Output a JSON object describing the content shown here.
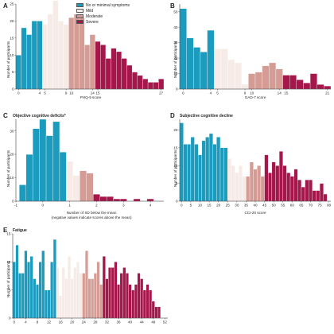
{
  "colors": {
    "none": "#1b9bbd",
    "mild": "#f6ebe6",
    "moderate": "#d59c96",
    "severe": "#a5164a"
  },
  "legend": {
    "items": [
      {
        "key": "none",
        "label": "No or minimal symptoms"
      },
      {
        "key": "mild",
        "label": "Mild"
      },
      {
        "key": "moderate",
        "label": "Moderate"
      },
      {
        "key": "severe",
        "label": "Severe"
      }
    ]
  },
  "chart_data": [
    {
      "panel": "A",
      "title": "",
      "type": "bar",
      "xlabel": "PHQ-9 score",
      "ylabel": "Number of participants",
      "xlim": [
        -0.5,
        27.5
      ],
      "ylim": [
        0,
        25
      ],
      "yticks": [
        0,
        5,
        10,
        15,
        20,
        25
      ],
      "xticks": [
        0,
        4,
        5,
        9,
        10,
        14,
        15,
        27
      ],
      "x": [
        0,
        1,
        2,
        3,
        4,
        5,
        6,
        7,
        8,
        9,
        10,
        11,
        12,
        13,
        14,
        15,
        16,
        17,
        18,
        19,
        20,
        21,
        22,
        23,
        24,
        25,
        26,
        27
      ],
      "values": [
        10,
        18,
        16,
        20,
        20,
        19,
        22,
        26,
        20,
        19,
        21,
        22,
        21,
        13,
        16,
        14,
        13,
        9,
        12,
        11,
        9,
        7,
        5,
        4,
        3,
        2,
        2,
        3
      ],
      "categories_bins": [
        "none",
        "none",
        "none",
        "none",
        "none",
        "mild",
        "mild",
        "mild",
        "mild",
        "mild",
        "moderate",
        "moderate",
        "moderate",
        "moderate",
        "moderate",
        "severe",
        "severe",
        "severe",
        "severe",
        "severe",
        "severe",
        "severe",
        "severe",
        "severe",
        "severe",
        "severe",
        "severe",
        "severe"
      ]
    },
    {
      "panel": "B",
      "title": "",
      "type": "bar",
      "xlabel": "GAD-7 score",
      "ylabel": "Number of participants",
      "xlim": [
        -0.5,
        21.5
      ],
      "ylim": [
        0,
        55
      ],
      "yticks": [
        0,
        10,
        20,
        30,
        40,
        50
      ],
      "xticks": [
        0,
        4,
        5,
        9,
        10,
        14,
        15,
        21
      ],
      "x": [
        0,
        1,
        2,
        3,
        4,
        5,
        6,
        7,
        8,
        9,
        10,
        11,
        12,
        13,
        14,
        15,
        16,
        17,
        18,
        19,
        20,
        21
      ],
      "values": [
        52,
        33,
        27,
        24,
        38,
        26,
        26,
        19,
        17,
        3,
        10,
        11,
        15,
        17,
        13,
        9,
        9,
        6,
        4,
        10,
        3,
        2
      ],
      "categories_bins": [
        "none",
        "none",
        "none",
        "none",
        "none",
        "mild",
        "mild",
        "mild",
        "mild",
        "mild",
        "moderate",
        "moderate",
        "moderate",
        "moderate",
        "moderate",
        "severe",
        "severe",
        "severe",
        "severe",
        "severe",
        "severe",
        "severe"
      ]
    },
    {
      "panel": "C",
      "title": "Objective cognitive deficits*",
      "type": "bar",
      "xlabel": "Number of SD below the mean",
      "xlabel2": "(negative values indicate scores above the mean)",
      "ylabel": "Number of participants",
      "xlim": [
        -1,
        4.5
      ],
      "ylim": [
        0,
        35
      ],
      "yticks": [
        0,
        10,
        20,
        30
      ],
      "xticks": [
        -1,
        0,
        1,
        2,
        3,
        4
      ],
      "x": [
        -0.75,
        -0.5,
        -0.25,
        0,
        0.25,
        0.5,
        0.75,
        1,
        1.25,
        1.5,
        1.75,
        2,
        2.25,
        2.5,
        2.75,
        3,
        3.25,
        3.5,
        3.75,
        4,
        4.25
      ],
      "values": [
        7,
        20,
        31,
        35,
        28,
        34,
        21,
        17,
        11,
        13,
        12,
        3,
        2,
        2,
        1,
        1,
        0,
        1,
        0,
        1,
        0
      ],
      "categories_bins": [
        "none",
        "none",
        "none",
        "none",
        "none",
        "none",
        "none",
        "mild",
        "mild",
        "moderate",
        "moderate",
        "severe",
        "severe",
        "severe",
        "severe",
        "severe",
        "severe",
        "severe",
        "severe",
        "severe",
        "severe"
      ]
    },
    {
      "panel": "D",
      "title": "Subjective cognitive decline",
      "type": "bar",
      "xlabel": "CCI-20 score",
      "ylabel": "Number of participants",
      "xlim": [
        -1,
        81
      ],
      "ylim": [
        0,
        23
      ],
      "yticks": [
        0,
        5,
        10,
        15,
        20
      ],
      "xticks": [
        0,
        5,
        10,
        15,
        20,
        25,
        30,
        35,
        40,
        45,
        50,
        55,
        60,
        65,
        70,
        75,
        80
      ],
      "x": [
        0,
        2,
        4,
        6,
        8,
        10,
        12,
        14,
        16,
        18,
        20,
        22,
        24,
        26,
        28,
        30,
        32,
        34,
        36,
        38,
        40,
        42,
        44,
        46,
        48,
        50,
        52,
        54,
        56,
        58,
        60,
        62,
        64,
        66,
        68,
        70,
        72,
        74,
        76,
        78
      ],
      "values": [
        22,
        16,
        16,
        18,
        16,
        13,
        17,
        18,
        19,
        16,
        18,
        15,
        15,
        12,
        10,
        8,
        10,
        7,
        7,
        11,
        9,
        10,
        7,
        13,
        8,
        11,
        10,
        14,
        10,
        8,
        7,
        9,
        6,
        4,
        6,
        6,
        3,
        3,
        5,
        2
      ],
      "categories_bins": [
        "none",
        "none",
        "none",
        "none",
        "none",
        "none",
        "none",
        "none",
        "none",
        "none",
        "none",
        "none",
        "none",
        "mild",
        "mild",
        "mild",
        "mild",
        "mild",
        "moderate",
        "moderate",
        "moderate",
        "moderate",
        "moderate",
        "severe",
        "severe",
        "severe",
        "severe",
        "severe",
        "severe",
        "severe",
        "severe",
        "severe",
        "severe",
        "severe",
        "severe",
        "severe",
        "severe",
        "severe",
        "severe",
        "severe"
      ]
    },
    {
      "panel": "E",
      "title": "Fatigue",
      "type": "bar",
      "xlabel": "",
      "ylabel": "Number of participants",
      "xlim": [
        -0.5,
        53
      ],
      "ylim": [
        0,
        15
      ],
      "yticks": [
        0,
        5,
        10,
        15
      ],
      "xticks": [
        0,
        4,
        8,
        12,
        16,
        20,
        24,
        28,
        32,
        36,
        40,
        44,
        48,
        52
      ],
      "x": [
        0,
        1,
        2,
        3,
        4,
        5,
        6,
        7,
        8,
        9,
        10,
        11,
        12,
        13,
        14,
        15,
        16,
        17,
        18,
        19,
        20,
        21,
        22,
        23,
        24,
        25,
        26,
        27,
        28,
        29,
        30,
        31,
        32,
        33,
        34,
        35,
        36,
        37,
        38,
        39,
        40,
        41,
        42,
        43,
        44,
        45,
        46,
        47,
        48,
        49,
        50
      ],
      "values": [
        10,
        13,
        8,
        8,
        12,
        10,
        11,
        7,
        6,
        10,
        12,
        5,
        5,
        10,
        14,
        9,
        4,
        9,
        7,
        11,
        7,
        9,
        10,
        8,
        8,
        12,
        7,
        7,
        8,
        10,
        6,
        11,
        7,
        9,
        9,
        10,
        6,
        8,
        9,
        8,
        6,
        5,
        6,
        8,
        7,
        5,
        6,
        5,
        3,
        2,
        2
      ],
      "categories_bins": [
        "none",
        "none",
        "none",
        "none",
        "none",
        "none",
        "none",
        "none",
        "none",
        "none",
        "none",
        "none",
        "none",
        "none",
        "none",
        "mild",
        "mild",
        "mild",
        "mild",
        "mild",
        "mild",
        "mild",
        "mild",
        "mild",
        "moderate",
        "moderate",
        "moderate",
        "moderate",
        "moderate",
        "moderate",
        "moderate",
        "severe",
        "severe",
        "severe",
        "severe",
        "severe",
        "severe",
        "severe",
        "severe",
        "severe",
        "severe",
        "severe",
        "severe",
        "severe",
        "severe",
        "severe",
        "severe",
        "severe",
        "severe",
        "severe",
        "severe"
      ]
    }
  ]
}
